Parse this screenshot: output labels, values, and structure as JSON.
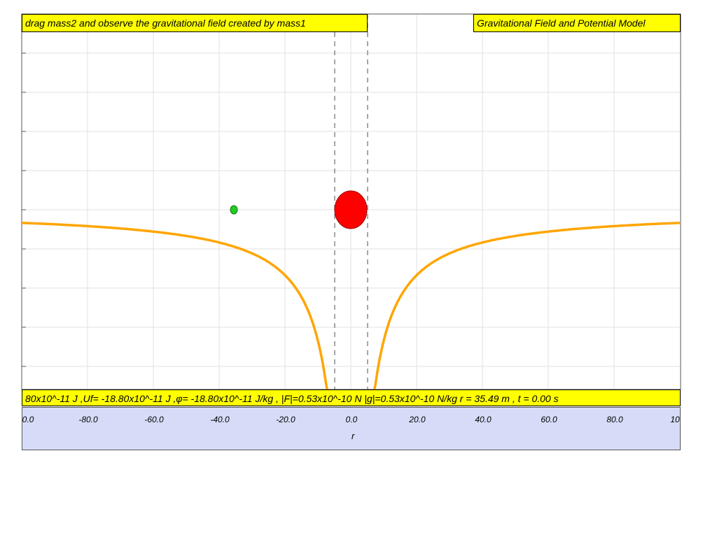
{
  "app": {
    "title": "Gravitational Field and Potential Model",
    "instruction": "drag mass2 and observe the gravitational field created by mass1"
  },
  "status": {
    "readout": "80x10^-11 J ,Uf= -18.80x10^-11 J ,φ= -18.80x10^-11 J/kg , |F|=0.53x10^-10 N |g|=0.53x10^-10 N/kg r = 35.49 m , t = 0.00 s"
  },
  "axis": {
    "label": "r",
    "ticks": [
      "0.0",
      "-80.0",
      "-60.0",
      "-40.0",
      "-20.0",
      "0.0",
      "20.0",
      "40.0",
      "60.0",
      "80.0",
      "10"
    ]
  },
  "simulation": {
    "mass1_position_r": 0,
    "mass2_position_r": -35.49,
    "r_range": [
      -100,
      100
    ],
    "curve": "potential ~ -1/|r|",
    "grid": true
  },
  "colors": {
    "banner": "#ffff00",
    "curve": "#ffa500",
    "mass1": "#ff0000",
    "mass2": "#22cc22",
    "axis_panel": "#d6dcf8",
    "grid": "#e2e2e2"
  }
}
